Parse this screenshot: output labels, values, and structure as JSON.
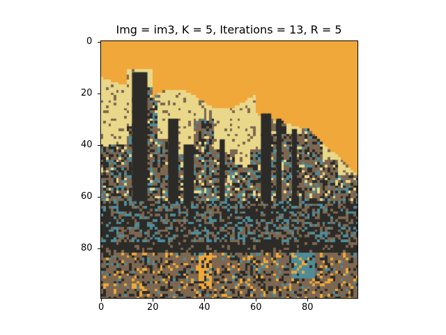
{
  "figure": {
    "title": "Img = im3, K = 5, Iterations = 13, R = 5"
  },
  "image": {
    "name": "im3",
    "k": 5,
    "iterations": 13,
    "r": 5,
    "grid": "100x100",
    "palette": {
      "orange": "#f0a83a",
      "cream": "#ead88a",
      "dark": "#2c2b28",
      "brown": "#7d6750",
      "teal": "#4f8c98"
    }
  },
  "axes": {
    "x_ticks": [
      "0",
      "20",
      "40",
      "60",
      "80"
    ],
    "y_ticks": [
      "0",
      "20",
      "40",
      "60",
      "80"
    ],
    "x_range": [
      -0.5,
      99.5
    ],
    "y_range": [
      99.5,
      -0.5
    ]
  }
}
